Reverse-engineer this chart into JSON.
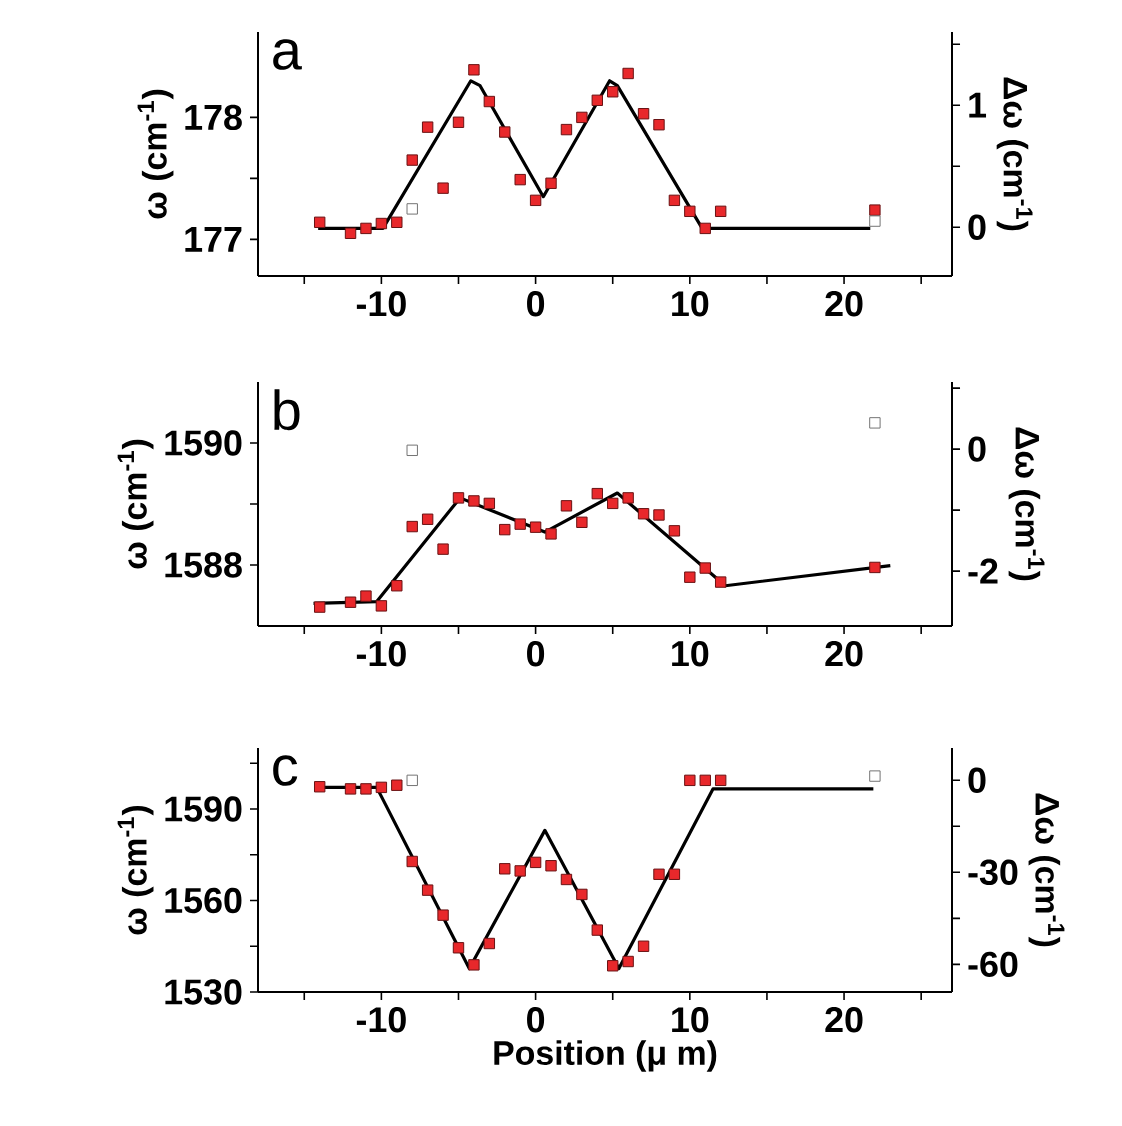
{
  "chart_data": [
    {
      "type": "scatter",
      "ylabel": "ω (cm$^{-1}$)",
      "y2label": "Δω (cm$^{-1}$)",
      "annotations": [
        "a"
      ],
      "marker": "square",
      "xlim": [
        -18,
        27
      ],
      "xticks": [
        {
          "value": -15,
          "label": null
        },
        -10,
        {
          "value": -5,
          "label": null
        },
        0,
        {
          "value": 5,
          "label": null
        },
        10,
        {
          "value": 15,
          "label": null
        },
        20,
        {
          "value": 25,
          "label": null
        }
      ],
      "ylim": [
        176.7,
        178.7
      ],
      "yticks": [
        177,
        {
          "value": 177.5,
          "label": null
        },
        178
      ],
      "y2lim": [
        -0.4,
        1.6
      ],
      "y2ticks": [
        0,
        {
          "value": 0.5,
          "label": null
        },
        1,
        {
          "value": 1.5,
          "label": null
        }
      ],
      "series": [
        {
          "type": "scatter",
          "color": "#e8282b",
          "x": [
            -14,
            -12,
            -11,
            -10,
            -9,
            -8,
            -7,
            -6,
            -5,
            -4,
            -3,
            -2,
            -1,
            0,
            1,
            2,
            3,
            4,
            5,
            6,
            7,
            8,
            9,
            10,
            11,
            12,
            22
          ],
          "values": [
            177.14,
            177.05,
            177.09,
            177.13,
            177.14,
            177.65,
            177.92,
            177.42,
            177.96,
            178.39,
            178.13,
            177.88,
            177.49,
            177.32,
            177.46,
            177.9,
            178.0,
            178.14,
            178.21,
            178.36,
            178.03,
            177.94,
            177.32,
            177.23,
            177.09,
            177.23,
            177.24
          ]
        },
        {
          "type": "line",
          "color": "#000000",
          "marker": "none",
          "x": [
            -14.1,
            -9.9,
            -4.2,
            -3.6,
            0.5,
            4.8,
            5.3,
            10.8,
            21.7
          ],
          "values": [
            177.09,
            177.09,
            178.3,
            178.26,
            177.35,
            178.3,
            178.26,
            177.09,
            177.09
          ]
        },
        {
          "type": "scatter",
          "color": "#ffffff",
          "x": [
            -8,
            22
          ],
          "values": [
            177.25,
            177.15
          ]
        }
      ]
    },
    {
      "type": "scatter",
      "ylabel": "ω (cm$^{-1}$)",
      "y2label": "Δω (cm$^{-1}$)",
      "annotations": [
        "b"
      ],
      "marker": "square",
      "xlim": [
        -18,
        27
      ],
      "xticks": [
        {
          "value": -15,
          "label": null
        },
        -10,
        {
          "value": -5,
          "label": null
        },
        0,
        {
          "value": 5,
          "label": null
        },
        10,
        {
          "value": 15,
          "label": null
        },
        20,
        {
          "value": 25,
          "label": null
        }
      ],
      "ylim": [
        1587.0,
        1591.0
      ],
      "yticks": [
        1588,
        {
          "value": 1589,
          "label": null
        },
        1590
      ],
      "y2lim": [
        -2.9,
        1.1
      ],
      "y2ticks": [
        -2,
        {
          "value": -1,
          "label": null
        },
        0,
        {
          "value": 1,
          "label": null
        }
      ],
      "series": [
        {
          "type": "scatter",
          "color": "#e8282b",
          "x": [
            -14,
            -12,
            -11,
            -10,
            -9,
            -8,
            -7,
            -6,
            -5,
            -4,
            -3,
            -2,
            -1,
            0,
            1,
            2,
            3,
            4,
            5,
            6,
            7,
            8,
            9,
            10,
            11,
            12,
            22
          ],
          "values": [
            1587.31,
            1587.39,
            1587.49,
            1587.33,
            1587.66,
            1588.63,
            1588.75,
            1588.26,
            1589.1,
            1589.05,
            1589.01,
            1588.58,
            1588.67,
            1588.62,
            1588.51,
            1588.97,
            1588.7,
            1589.17,
            1589.01,
            1589.1,
            1588.84,
            1588.82,
            1588.56,
            1587.8,
            1587.95,
            1587.72,
            1587.96
          ]
        },
        {
          "type": "line",
          "color": "#000000",
          "marker": "none",
          "x": [
            -14.4,
            -10.3,
            -4.9,
            0.6,
            5.3,
            12.3,
            23.0
          ],
          "values": [
            1587.37,
            1587.4,
            1589.1,
            1588.54,
            1589.18,
            1587.66,
            1587.99
          ]
        },
        {
          "type": "scatter",
          "color": "#ffffff",
          "x": [
            -8,
            22
          ],
          "values": [
            1589.88,
            1590.33
          ]
        }
      ]
    },
    {
      "type": "scatter",
      "xlabel": "Position (μ m)",
      "ylabel": "ω (cm$^{-1}$)",
      "y2label": "Δω (cm$^{-1}$)",
      "annotations": [
        "c"
      ],
      "marker": "square",
      "xlim": [
        -18,
        27
      ],
      "xticks": [
        {
          "value": -15,
          "label": null
        },
        -10,
        {
          "value": -5,
          "label": null
        },
        0,
        {
          "value": 5,
          "label": null
        },
        10,
        {
          "value": 15,
          "label": null
        },
        20,
        {
          "value": 25,
          "label": null
        }
      ],
      "ylim": [
        1530,
        1610
      ],
      "yticks": [
        1530,
        {
          "value": 1545,
          "label": null
        },
        1560,
        {
          "value": 1575,
          "label": null
        },
        1590,
        {
          "value": 1605,
          "label": null
        }
      ],
      "y2lim": [
        -69,
        10.5
      ],
      "y2ticks": [
        -60,
        {
          "value": -45,
          "label": null
        },
        -30,
        {
          "value": -15,
          "label": null
        },
        0
      ],
      "series": [
        {
          "type": "scatter",
          "color": "#e8282b",
          "x": [
            -14,
            -12,
            -11,
            -10,
            -9,
            -8,
            -7,
            -6,
            -5,
            -4,
            -3,
            -2,
            -1,
            0,
            1,
            2,
            3,
            4,
            5,
            6,
            7,
            8,
            9,
            10,
            11,
            12
          ],
          "values": [
            1597.3,
            1596.6,
            1596.6,
            1597.1,
            1597.8,
            1572.8,
            1563.4,
            1555.2,
            1544.5,
            1538.9,
            1545.9,
            1570.4,
            1569.7,
            1572.5,
            1571.4,
            1566.9,
            1562.0,
            1550.3,
            1538.6,
            1540.0,
            1545.0,
            1568.6,
            1568.6,
            1599.4,
            1599.4,
            1599.4
          ]
        },
        {
          "type": "line",
          "color": "#000000",
          "marker": "none",
          "x": [
            -14.1,
            -10.3,
            -4.3,
            0.6,
            5.4,
            11.5,
            21.9
          ],
          "values": [
            1597.1,
            1597.1,
            1537.7,
            1583.0,
            1537.7,
            1596.6,
            1596.6
          ]
        },
        {
          "type": "scatter",
          "color": "#ffffff",
          "x": [
            -8,
            22
          ],
          "values": [
            1599.4,
            1600.8
          ]
        }
      ]
    }
  ]
}
